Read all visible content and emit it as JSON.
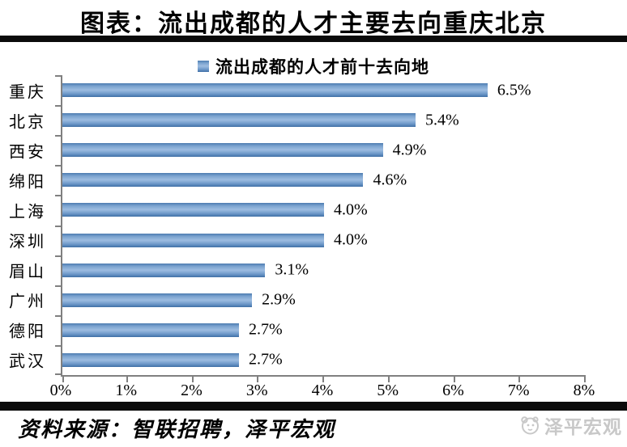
{
  "title": "图表：流出成都的人才主要去向重庆北京",
  "legend": {
    "marker": "blue-square",
    "label": "流出成都的人才前十去向地"
  },
  "chart_data": {
    "type": "bar",
    "orientation": "horizontal",
    "title": "流出成都的人才前十去向地",
    "categories": [
      "重庆",
      "北京",
      "西安",
      "绵阳",
      "上海",
      "深圳",
      "眉山",
      "广州",
      "德阳",
      "武汉"
    ],
    "values": [
      6.5,
      5.4,
      4.9,
      4.6,
      4.0,
      4.0,
      3.1,
      2.9,
      2.7,
      2.7
    ],
    "value_labels": [
      "6.5%",
      "5.4%",
      "4.9%",
      "4.6%",
      "4.0%",
      "4.0%",
      "3.1%",
      "2.9%",
      "2.7%",
      "2.7%"
    ],
    "xlim": [
      0,
      8
    ],
    "x_tick_labels": [
      "0%",
      "1%",
      "2%",
      "3%",
      "4%",
      "5%",
      "6%",
      "7%",
      "8%"
    ],
    "legend_position": "top",
    "grid": false,
    "bar_color_top": "#4d7cb0",
    "bar_color_mid": "#9dbce0",
    "bar_color_bottom": "#3f6fa5",
    "axis_color": "#808080"
  },
  "footer": {
    "source": "资料来源：智联招聘，泽平宏观",
    "watermark_label": "泽平宏观"
  },
  "colors": {
    "rule": "#0b0b0b",
    "text": "#000000",
    "watermark": "#c8c8c8"
  }
}
